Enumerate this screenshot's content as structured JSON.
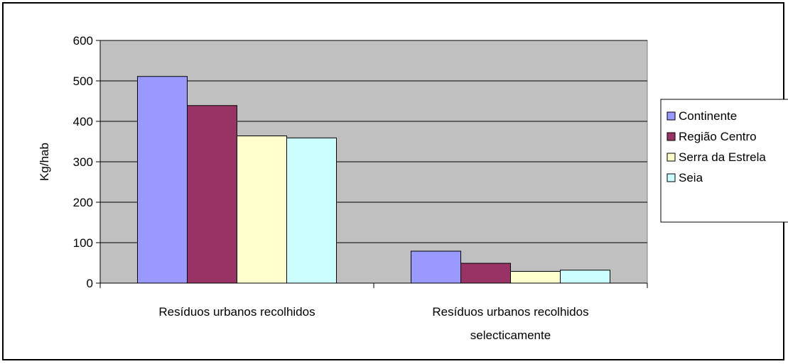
{
  "chart_data": {
    "type": "bar",
    "categories": [
      "Resíduos urbanos recolhidos",
      "Resíduos urbanos recolhidos selecticamente"
    ],
    "category_lines": [
      [
        "Resíduos urbanos recolhidos"
      ],
      [
        "Resíduos urbanos recolhidos",
        "selecticamente"
      ]
    ],
    "series": [
      {
        "name": "Continente",
        "values": [
          511,
          79
        ],
        "color": "#9999ff"
      },
      {
        "name": "Região Centro",
        "values": [
          439,
          49
        ],
        "color": "#993366"
      },
      {
        "name": "Serra da Estrela",
        "values": [
          364,
          29
        ],
        "color": "#ffffcc"
      },
      {
        "name": "Seia",
        "values": [
          359,
          32
        ],
        "color": "#ccffff"
      }
    ],
    "title": "",
    "xlabel": "",
    "ylabel": "Kg/hab",
    "ylim": [
      0,
      600
    ],
    "yticks": [
      0,
      100,
      200,
      300,
      400,
      500,
      600
    ],
    "grid": true,
    "plot_background": "#c0c0c0",
    "legend_position": "right"
  }
}
